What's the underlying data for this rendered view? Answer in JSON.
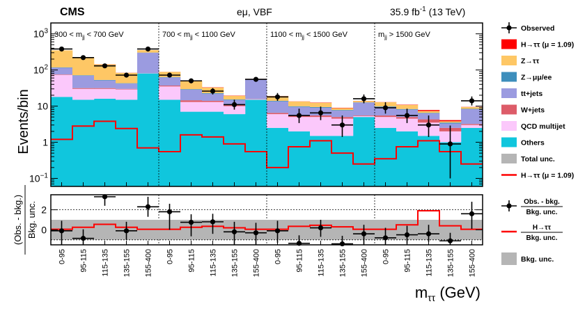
{
  "chart_data": {
    "type": "bar",
    "header": {
      "experiment": "CMS",
      "channel": "eμ, VBF",
      "lumi": "35.9 fb",
      "lumi_exp": "-1",
      "energy": " (13 TeV)"
    },
    "categories": [
      "0-95",
      "95-115",
      "115-135",
      "135-155",
      "155-400",
      "0-95",
      "95-115",
      "115-135",
      "135-155",
      "155-400",
      "0-95",
      "95-115",
      "115-135",
      "135-155",
      "155-400",
      "0-95",
      "95-115",
      "115-135",
      "135-155",
      "155-400"
    ],
    "mjj_regions": [
      {
        "pre": "300 < m",
        "sub": "jj",
        "post": " < 700 GeV"
      },
      {
        "pre": "700 < m",
        "sub": "jj",
        "post": " < 1100 GeV"
      },
      {
        "pre": "1100 < m",
        "sub": "jj",
        "post": " < 1500 GeV"
      },
      {
        "pre": "m",
        "sub": "jj",
        "post": " > 1500 GeV"
      }
    ],
    "top_panel": {
      "ylabel": "Events/bin",
      "yscale": "log",
      "ylim": [
        0.06,
        2000
      ],
      "yticks": [
        {
          "v": 1000,
          "label": "10",
          "exp": "3"
        },
        {
          "v": 100,
          "label": "10",
          "exp": "2"
        },
        {
          "v": 10,
          "label": "10",
          "exp": ""
        },
        {
          "v": 1,
          "label": "1",
          "exp": ""
        },
        {
          "v": 0.1,
          "label": "10",
          "exp": "−1"
        }
      ]
    },
    "stack_order": [
      "Others",
      "QCD multijet",
      "W+jets",
      "tt+jets",
      "Z→μμ/ee",
      "Z→ττ",
      "H→ττ"
    ],
    "series": [
      {
        "name": "Others",
        "color": "#10c6dd",
        "values": [
          18,
          15,
          16,
          15,
          80,
          15,
          7,
          7,
          6,
          15,
          2.5,
          2,
          1.5,
          1.5,
          5,
          2.5,
          2,
          1.5,
          1,
          2.5
        ]
      },
      {
        "name": "QCD multijet",
        "color": "#fbc8fb",
        "values": [
          55,
          15,
          14,
          14,
          0.5,
          20,
          6,
          6,
          4,
          0.5,
          3.5,
          3,
          3.5,
          3,
          0.3,
          2.5,
          2.5,
          2,
          1,
          0.5
        ]
      },
      {
        "name": "W+jets",
        "color": "#dd5c69",
        "values": [
          2,
          1.5,
          1.5,
          1,
          0.5,
          2,
          1.5,
          1,
          0.8,
          0.3,
          0.5,
          0.5,
          0.5,
          0.5,
          0.2,
          0.5,
          0.5,
          0.8,
          0.5,
          0.2
        ]
      },
      {
        "name": "tt+jets",
        "color": "#9b9be0",
        "values": [
          40,
          38,
          20,
          12,
          220,
          25,
          14,
          8,
          4,
          38,
          7,
          4,
          3.5,
          2.5,
          7,
          4,
          3,
          2,
          0.8,
          5
        ]
      },
      {
        "name": "Z→μμ/ee",
        "color": "#3d8ebc",
        "values": [
          3,
          2,
          1.5,
          1,
          2,
          1.5,
          1,
          0.8,
          0.5,
          0.5,
          0.5,
          0.4,
          0.4,
          0.3,
          0.2,
          0.3,
          0.3,
          0.2,
          0.2,
          0.2
        ]
      },
      {
        "name": "Z→ττ",
        "color": "#fec765",
        "values": [
          230,
          150,
          90,
          40,
          50,
          25,
          20,
          10,
          4,
          2,
          5,
          3.5,
          3,
          1,
          1.2,
          3,
          2.5,
          0.8,
          0.3,
          1
        ]
      },
      {
        "name": "H→ττ",
        "color": "#fe0000",
        "values": [
          0.5,
          0.5,
          1,
          0.6,
          0.5,
          0.3,
          0.4,
          0.5,
          0.3,
          0.3,
          0.1,
          0.1,
          0.2,
          0.2,
          0.1,
          0.1,
          0.2,
          0.5,
          0.3,
          0.1
        ]
      }
    ],
    "signal_line": {
      "name": "H→ττ (μ = 1.09)",
      "color": "#fe0000",
      "values": [
        1.2,
        2.8,
        3.8,
        2.4,
        0.7,
        0.55,
        1.6,
        1.4,
        0.9,
        0.55,
        0.2,
        0.75,
        1.1,
        0.5,
        0.25,
        0.35,
        0.75,
        1.1,
        0.55,
        0.25
      ]
    },
    "observed": {
      "name": "Observed",
      "values": [
        380,
        220,
        130,
        72,
        380,
        72,
        50,
        26,
        11,
        55,
        18,
        5.5,
        6.5,
        3,
        16,
        9,
        5.5,
        3,
        0.9,
        14
      ],
      "err_low": [
        19,
        15,
        11,
        8.5,
        19,
        8.5,
        7,
        5,
        3,
        7.5,
        4,
        2.1,
        2.4,
        1.6,
        4,
        2.8,
        2.1,
        1.6,
        0.8,
        3.6
      ],
      "err_high": [
        20,
        16,
        12,
        9,
        20,
        9,
        7.5,
        5.5,
        4,
        8,
        5,
        3,
        3.2,
        2.5,
        5,
        3.8,
        3,
        2.5,
        2,
        4.5
      ]
    },
    "bottom_panel": {
      "ylabel_num": "(Obs. - bkg.)",
      "ylabel_den": "Bkg. unc.",
      "ylim": [
        -1.5,
        3.5
      ],
      "yticks": [
        0,
        2
      ],
      "ytick_labels": [
        "0",
        "2"
      ],
      "dotted_lines": [
        -1,
        2
      ],
      "unc_band": [
        -1,
        1
      ],
      "pulls": [
        -0.1,
        -0.85,
        3.3,
        -0.1,
        2.3,
        1.8,
        0.75,
        0.8,
        -0.2,
        -0.3,
        -0.1,
        -1.35,
        0.2,
        -1.4,
        -0.4,
        -0.8,
        -0.5,
        -0.4,
        -1.1,
        1.6
      ],
      "pull_err_low": [
        1.9,
        0.8,
        0.9,
        0.9,
        1.0,
        1.8,
        1.4,
        1.2,
        1.4,
        1.2,
        1.2,
        0.5,
        0.9,
        0.5,
        1.1,
        1.0,
        0.9,
        0.8,
        0.7,
        1.5
      ],
      "pull_err_high": [
        1.0,
        0.9,
        1.0,
        0.9,
        1.0,
        0.8,
        0.8,
        0.8,
        1.0,
        1.0,
        1.0,
        0.8,
        0.8,
        0.8,
        0.9,
        1.0,
        0.9,
        0.9,
        0.8,
        1.2
      ],
      "signal_ratio": [
        0.05,
        0.25,
        0.55,
        0.25,
        0.05,
        0.05,
        0.25,
        0.35,
        0.2,
        0.05,
        0.05,
        0.35,
        0.45,
        0.3,
        0.05,
        0.05,
        0.5,
        1.9,
        0.4,
        0.05
      ]
    },
    "xlabel": "m",
    "xlabel_sub": "ττ",
    "xlabel_unit": " (GeV)",
    "legend_top": [
      {
        "label": "Observed",
        "kind": "marker"
      },
      {
        "label": "H→ττ (μ = 1.09)",
        "kind": "box",
        "color": "#fe0000"
      },
      {
        "label": "Z→ττ",
        "kind": "box",
        "color": "#fec765"
      },
      {
        "label": "Z→μμ/ee",
        "kind": "box",
        "color": "#3d8ebc"
      },
      {
        "label": "tt+jets",
        "kind": "box",
        "color": "#9b9be0"
      },
      {
        "label": "W+jets",
        "kind": "box",
        "color": "#dd5c69"
      },
      {
        "label": "QCD multijet",
        "kind": "box",
        "color": "#fbc8fb"
      },
      {
        "label": "Others",
        "kind": "box",
        "color": "#10c6dd"
      },
      {
        "label": "Total unc.",
        "kind": "box",
        "color": "#b5b5b5"
      },
      {
        "label": "H→ττ (μ = 1.09)",
        "kind": "line",
        "color": "#fe0000"
      }
    ],
    "legend_bottom": [
      {
        "num": "Obs. - bkg.",
        "den": "Bkg. unc.",
        "kind": "marker"
      },
      {
        "num": "H→ττ",
        "den": "Bkg. unc.",
        "kind": "line",
        "color": "#fe0000"
      },
      {
        "label": "Bkg. unc.",
        "kind": "box",
        "color": "#b5b5b5"
      }
    ]
  }
}
